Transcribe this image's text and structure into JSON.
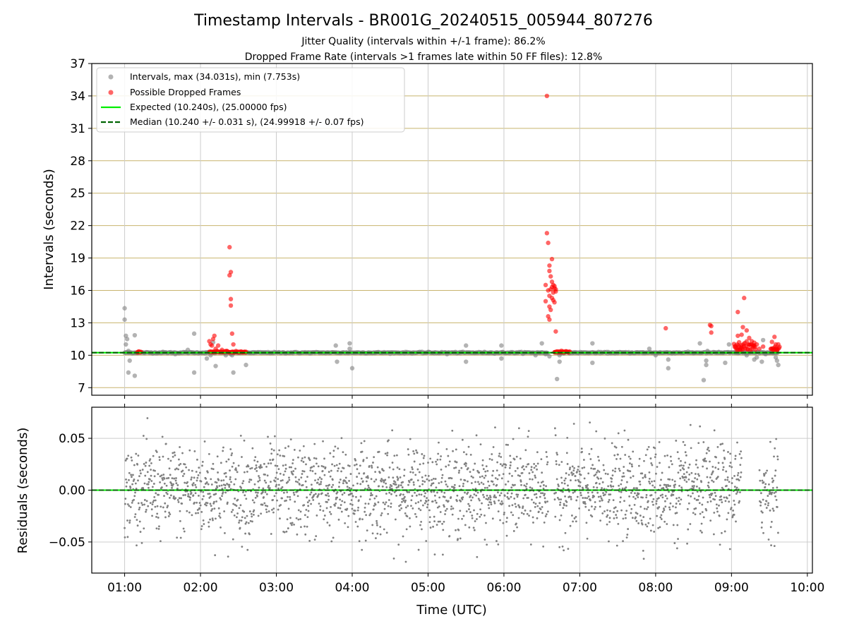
{
  "figure": {
    "title": "Timestamp Intervals - BR001G_20240515_005944_807276",
    "subtitle_1": "Jitter Quality (intervals within +/-1 frame): 86.2%",
    "subtitle_2": "Dropped Frame Rate (intervals >1 frames late within 50 FF files): 12.8%",
    "colors": {
      "gray_points": "#808080",
      "red_points": "#ff0000",
      "expected_line": "#00ee00",
      "median_line": "#006400",
      "grid_top": "#c8b46e",
      "grid_bottom": "#cccccc"
    }
  },
  "chart_data": [
    {
      "type": "scatter",
      "panel": "intervals",
      "ylabel": "Intervals (seconds)",
      "xlabel": "",
      "ylim": [
        6.3,
        37
      ],
      "xlim": [
        "00:34",
        "10:04"
      ],
      "yticks": [
        "7",
        "10",
        "13",
        "16",
        "19",
        "22",
        "25",
        "28",
        "31",
        "34",
        "37"
      ],
      "xticks": [
        "01:00",
        "02:00",
        "03:00",
        "04:00",
        "05:00",
        "06:00",
        "07:00",
        "08:00",
        "09:00",
        "10:00"
      ],
      "grid": true,
      "legend_position": "top-left",
      "legend": [
        "Intervals, max (34.031s), min (7.753s)",
        "Possible Dropped Frames",
        "Expected (10.240s), (25.00000 fps)",
        "Median (10.240 +/- 0.031 s), (24.99918 +/- 0.07 fps)"
      ],
      "series": [
        {
          "name": "Intervals, max (34.031s), min (7.753s)",
          "baseline": 10.24,
          "baseline_ranges": [
            [
              "01:00",
              "06:35"
            ],
            [
              "06:40",
              "09:37"
            ]
          ],
          "points": [
            [
              "01:00",
              14.35
            ],
            [
              "01:00",
              13.3
            ],
            [
              "01:01",
              11.8
            ],
            [
              "01:02",
              11.5
            ],
            [
              "01:01",
              11.0
            ],
            [
              "01:03",
              10.4
            ],
            [
              "01:04",
              9.5
            ],
            [
              "01:03",
              8.4
            ],
            [
              "01:08",
              8.1
            ],
            [
              "01:08",
              11.85
            ],
            [
              "01:30",
              10.3
            ],
            [
              "01:40",
              10.1
            ],
            [
              "01:50",
              10.5
            ],
            [
              "01:55",
              12.0
            ],
            [
              "01:55",
              8.4
            ],
            [
              "02:05",
              9.7
            ],
            [
              "02:08",
              10.0
            ],
            [
              "02:10",
              11.2
            ],
            [
              "02:12",
              9.0
            ],
            [
              "02:20",
              10.0
            ],
            [
              "02:24",
              10.1
            ],
            [
              "02:25",
              10.0
            ],
            [
              "02:26",
              8.4
            ],
            [
              "02:36",
              9.1
            ],
            [
              "02:42",
              10.2
            ],
            [
              "03:47",
              10.9
            ],
            [
              "03:48",
              9.4
            ],
            [
              "03:58",
              11.1
            ],
            [
              "03:58",
              10.6
            ],
            [
              "04:00",
              8.8
            ],
            [
              "04:18",
              10.2
            ],
            [
              "05:00",
              10.3
            ],
            [
              "05:15",
              10.1
            ],
            [
              "05:30",
              10.9
            ],
            [
              "05:30",
              9.4
            ],
            [
              "05:58",
              10.9
            ],
            [
              "05:59",
              10.3
            ],
            [
              "05:58",
              9.7
            ],
            [
              "06:25",
              10.0
            ],
            [
              "06:30",
              11.1
            ],
            [
              "06:33",
              10.1
            ],
            [
              "06:36",
              9.9
            ],
            [
              "06:42",
              7.8
            ],
            [
              "06:44",
              9.4
            ],
            [
              "06:44",
              10.0
            ],
            [
              "07:10",
              11.1
            ],
            [
              "07:10",
              9.3
            ],
            [
              "07:30",
              10.2
            ],
            [
              "07:50",
              10.2
            ],
            [
              "07:55",
              10.6
            ],
            [
              "08:00",
              10.0
            ],
            [
              "08:10",
              9.6
            ],
            [
              "08:10",
              8.8
            ],
            [
              "08:30",
              10.2
            ],
            [
              "08:35",
              11.1
            ],
            [
              "08:38",
              7.7
            ],
            [
              "08:40",
              9.5
            ],
            [
              "08:40",
              9.1
            ],
            [
              "08:41",
              10.4
            ],
            [
              "08:50",
              10.3
            ],
            [
              "08:55",
              9.3
            ],
            [
              "08:58",
              11.0
            ],
            [
              "09:05",
              10.5
            ],
            [
              "09:12",
              10.0
            ],
            [
              "09:18",
              9.6
            ],
            [
              "09:20",
              9.8
            ],
            [
              "09:24",
              9.4
            ],
            [
              "09:25",
              11.4
            ],
            [
              "09:27",
              10.1
            ],
            [
              "09:32",
              10.6
            ],
            [
              "09:35",
              9.8
            ],
            [
              "09:37",
              9.1
            ],
            [
              "09:36",
              9.5
            ]
          ]
        },
        {
          "name": "Possible Dropped Frames",
          "clusters": [
            {
              "start": "01:10",
              "end": "01:13",
              "value": 10.27
            },
            {
              "start": "02:07",
              "end": "02:23",
              "value": 10.27
            },
            {
              "start": "02:24",
              "end": "02:36",
              "value": 10.27
            },
            {
              "start": "06:40",
              "end": "06:52",
              "value": 10.27
            },
            {
              "start": "09:02",
              "end": "09:19",
              "value": 10.5
            },
            {
              "start": "09:31",
              "end": "09:38",
              "value": 10.4
            }
          ],
          "points": [
            [
              "02:07",
              11.3
            ],
            [
              "02:08",
              11.0
            ],
            [
              "02:09",
              10.9
            ],
            [
              "02:10",
              11.5
            ],
            [
              "02:11",
              11.8
            ],
            [
              "02:12",
              10.6
            ],
            [
              "02:14",
              10.9
            ],
            [
              "02:17",
              10.5
            ],
            [
              "02:23",
              20.0
            ],
            [
              "02:24",
              17.7
            ],
            [
              "02:23",
              17.4
            ],
            [
              "02:24",
              15.2
            ],
            [
              "02:24",
              14.6
            ],
            [
              "02:25",
              12.0
            ],
            [
              "02:26",
              11.0
            ],
            [
              "06:34",
              34.0
            ],
            [
              "06:34",
              21.3
            ],
            [
              "06:35",
              20.4
            ],
            [
              "06:36",
              18.3
            ],
            [
              "06:38",
              18.9
            ],
            [
              "06:36",
              17.8
            ],
            [
              "06:37",
              17.3
            ],
            [
              "06:38",
              16.8
            ],
            [
              "06:33",
              16.5
            ],
            [
              "06:35",
              16.0
            ],
            [
              "06:37",
              16.1
            ],
            [
              "06:38",
              16.3
            ],
            [
              "06:39",
              15.8
            ],
            [
              "06:40",
              16.4
            ],
            [
              "06:41",
              15.9
            ],
            [
              "06:39",
              16.5
            ],
            [
              "06:40",
              16.2
            ],
            [
              "06:41",
              16.1
            ],
            [
              "06:36",
              15.5
            ],
            [
              "06:38",
              15.3
            ],
            [
              "06:39",
              15.1
            ],
            [
              "06:40",
              14.9
            ],
            [
              "06:36",
              14.5
            ],
            [
              "06:37",
              14.2
            ],
            [
              "06:35",
              13.6
            ],
            [
              "06:36",
              13.3
            ],
            [
              "06:41",
              12.2
            ],
            [
              "06:33",
              15.0
            ],
            [
              "08:08",
              12.5
            ],
            [
              "08:44",
              12.7
            ],
            [
              "08:43",
              12.8
            ],
            [
              "08:44",
              12.1
            ],
            [
              "09:05",
              14.0
            ],
            [
              "09:10",
              15.3
            ],
            [
              "09:09",
              12.6
            ],
            [
              "09:12",
              12.3
            ],
            [
              "09:08",
              11.9
            ],
            [
              "09:14",
              11.6
            ],
            [
              "09:05",
              11.8
            ],
            [
              "09:06",
              11.2
            ],
            [
              "09:08",
              10.8
            ],
            [
              "09:16",
              11.3
            ],
            [
              "09:18",
              10.9
            ],
            [
              "09:20",
              11.0
            ],
            [
              "09:22",
              10.6
            ],
            [
              "09:25",
              10.8
            ],
            [
              "09:34",
              11.7
            ],
            [
              "09:35",
              11.0
            ],
            [
              "09:36",
              10.5
            ]
          ]
        },
        {
          "name": "Expected (10.240s), (25.00000 fps)",
          "value": 10.24
        },
        {
          "name": "Median (10.240 +/- 0.031 s), (24.99918 +/- 0.07 fps)",
          "value": 10.24
        }
      ]
    },
    {
      "type": "scatter",
      "panel": "residuals",
      "ylabel": "Residuals (seconds)",
      "xlabel": "Time (UTC)",
      "ylim": [
        -0.08,
        0.08
      ],
      "xlim": [
        "00:34",
        "10:04"
      ],
      "yticks": [
        "0.05",
        "0.00",
        "−0.05"
      ],
      "xticks": [
        "01:00",
        "02:00",
        "03:00",
        "04:00",
        "05:00",
        "06:00",
        "07:00",
        "08:00",
        "09:00",
        "10:00"
      ],
      "grid": true,
      "series": [
        {
          "name": "Residuals",
          "time_ranges": [
            [
              "01:00",
              "06:35"
            ],
            [
              "06:40",
              "09:37"
            ]
          ],
          "gap": [
            "09:08",
            "09:22"
          ],
          "spread_sd": 0.022,
          "reference_line": 0.0
        }
      ]
    }
  ]
}
